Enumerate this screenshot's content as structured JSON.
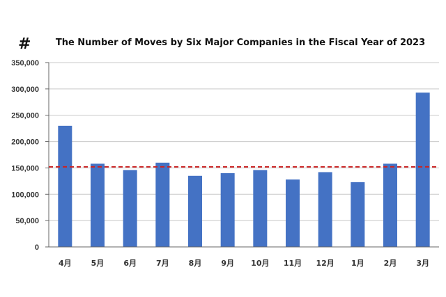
{
  "header": {
    "symbol": "#"
  },
  "chart_data": {
    "type": "bar",
    "title": "The Number of Moves by Six Major Companies in the Fiscal Year of 2023",
    "xlabel": "",
    "ylabel": "",
    "categories": [
      "4月",
      "5月",
      "6月",
      "7月",
      "8月",
      "9月",
      "10月",
      "11月",
      "12月",
      "1月",
      "2月",
      "3月"
    ],
    "values": [
      230000,
      158000,
      146000,
      160000,
      135000,
      140000,
      146000,
      128000,
      142000,
      123000,
      158000,
      293000
    ],
    "ylim": [
      0,
      350000
    ],
    "yticks": [
      0,
      50000,
      100000,
      150000,
      200000,
      250000,
      300000,
      350000
    ],
    "ytick_labels": [
      "0",
      "50,000",
      "100,000",
      "150,000",
      "200,000",
      "250,000",
      "300,000",
      "350,000"
    ],
    "reference_line": {
      "value": 152000,
      "style": "dashed",
      "color": "#cc2222"
    },
    "bar_color": "#4472c4",
    "grid": true,
    "gridline_color": "#c8c8c8",
    "legend": "none"
  }
}
